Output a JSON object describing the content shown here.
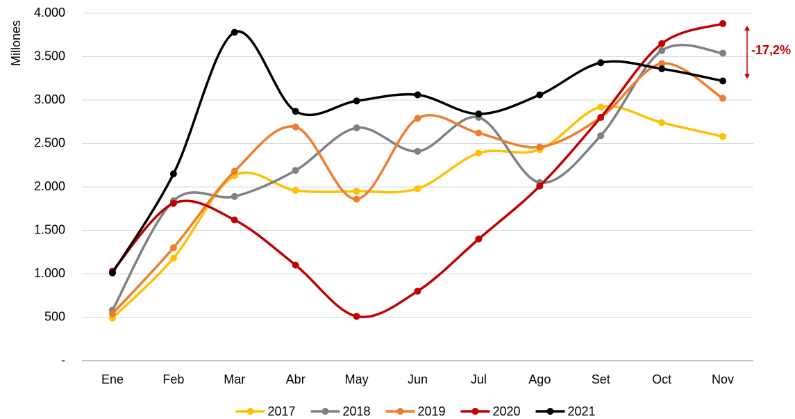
{
  "chart_data": {
    "type": "line",
    "y_label": "Millones",
    "annotation": "-17,2%",
    "annotation_color": "#c00000",
    "categories": [
      "Ene",
      "Feb",
      "Mar",
      "Abr",
      "May",
      "Jun",
      "Jul",
      "Ago",
      "Set",
      "Oct",
      "Nov"
    ],
    "series": [
      {
        "name": "2017",
        "color": "#ffc000",
        "values": [
          490,
          1180,
          2130,
          1960,
          1950,
          1980,
          2390,
          2430,
          2920,
          2740,
          2580
        ]
      },
      {
        "name": "2018",
        "color": "#808080",
        "values": [
          580,
          1840,
          1890,
          2190,
          2680,
          2410,
          2800,
          2050,
          2590,
          3570,
          3540
        ]
      },
      {
        "name": "2019",
        "color": "#ed7d31",
        "values": [
          540,
          1300,
          2180,
          2690,
          1860,
          2790,
          2620,
          2460,
          2800,
          3420,
          3020
        ]
      },
      {
        "name": "2020",
        "color": "#c00000",
        "values": [
          1030,
          1810,
          1620,
          1100,
          510,
          800,
          1400,
          2010,
          2800,
          3650,
          3880
        ]
      },
      {
        "name": "2021",
        "color": "#000000",
        "values": [
          1010,
          2150,
          3780,
          2870,
          2990,
          3060,
          2840,
          3060,
          3430,
          3360,
          3220
        ]
      }
    ],
    "ylim": [
      0,
      4000
    ],
    "yticks": [
      {
        "value": 0,
        "label": "-"
      },
      500,
      {
        "value": 1000,
        "label": "1.000"
      },
      {
        "value": 1500,
        "label": "1.500"
      },
      {
        "value": 2000,
        "label": "2.000"
      },
      {
        "value": 2500,
        "label": "2.500"
      },
      {
        "value": 3000,
        "label": "3.000"
      },
      {
        "value": 3500,
        "label": "3.500"
      },
      {
        "value": 4000,
        "label": "4.000"
      }
    ],
    "grid": true,
    "legend": "bottom",
    "smooth": true
  }
}
